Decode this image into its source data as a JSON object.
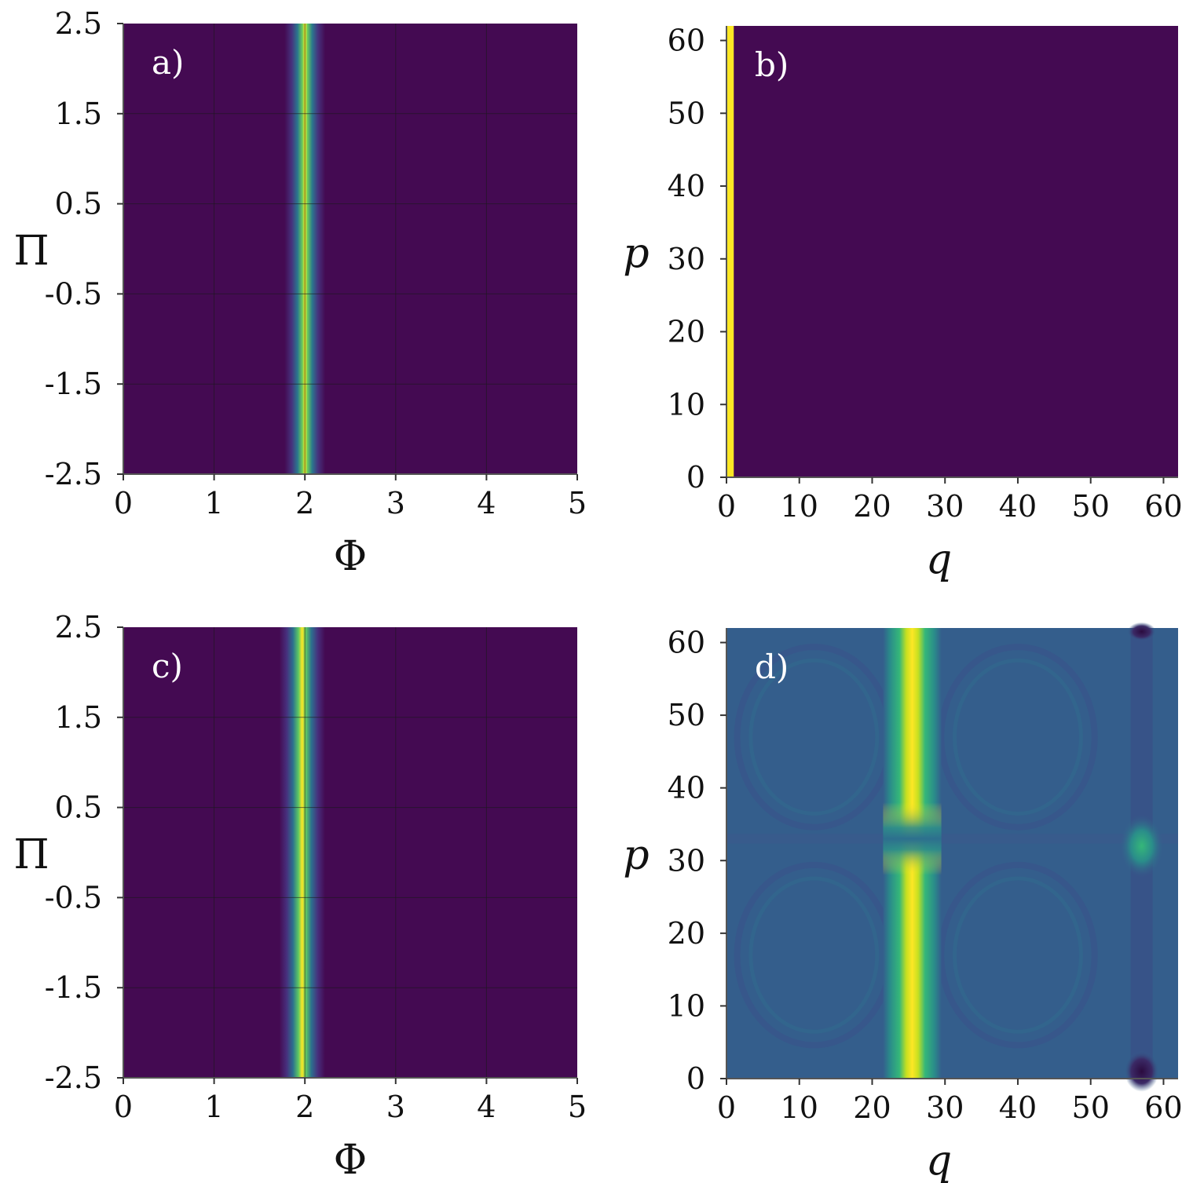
{
  "chart_data": [
    {
      "type": "heatmap",
      "panel_label": "a)",
      "xlabel": "Φ",
      "ylabel": "Π",
      "xlim": [
        0,
        5
      ],
      "ylim": [
        -2.5,
        2.5
      ],
      "xticks": [
        "0",
        "1",
        "2",
        "3",
        "4",
        "5"
      ],
      "yticks": [
        "2.5",
        "1.5",
        "0.5",
        "-0.5",
        "-1.5",
        "-2.5"
      ],
      "grid": true,
      "background_color": "#440a52",
      "feature": {
        "kind": "vertical_band",
        "center_x": 2.0,
        "width": 0.16,
        "peak_color": "#fde725"
      }
    },
    {
      "type": "heatmap",
      "panel_label": "b)",
      "xlabel": "q",
      "ylabel": "p",
      "xlim": [
        0,
        62
      ],
      "ylim": [
        0,
        62
      ],
      "xticks": [
        "0",
        "10",
        "20",
        "30",
        "40",
        "50",
        "60"
      ],
      "yticks": [
        "60",
        "50",
        "40",
        "30",
        "20",
        "10",
        "0"
      ],
      "grid": false,
      "background_color": "#440a52",
      "feature": {
        "kind": "column",
        "q_start": 0,
        "q_end": 1,
        "peak_color": "#fde725"
      }
    },
    {
      "type": "heatmap",
      "panel_label": "c)",
      "xlabel": "Φ",
      "ylabel": "Π",
      "xlim": [
        0,
        5
      ],
      "ylim": [
        -2.5,
        2.5
      ],
      "xticks": [
        "0",
        "1",
        "2",
        "3",
        "4",
        "5"
      ],
      "yticks": [
        "2.5",
        "1.5",
        "0.5",
        "-0.5",
        "-1.5",
        "-2.5"
      ],
      "grid": true,
      "background_color": "#440a52",
      "feature": {
        "kind": "vertical_band",
        "center_x": 1.97,
        "width": 0.18,
        "peak_color": "#fde725"
      }
    },
    {
      "type": "heatmap",
      "panel_label": "d)",
      "xlabel": "q",
      "ylabel": "p",
      "xlim": [
        0,
        62
      ],
      "ylim": [
        0,
        62
      ],
      "xticks": [
        "0",
        "10",
        "20",
        "30",
        "40",
        "50",
        "60"
      ],
      "yticks": [
        "60",
        "50",
        "40",
        "30",
        "20",
        "10",
        "0"
      ],
      "grid": false,
      "background_color": "#345e8c",
      "feature": {
        "kind": "column_with_features",
        "column_q": 25.5,
        "column_width": 2.5,
        "peak_color": "#fde725",
        "gap_p": 33,
        "spot_q": 57,
        "spot_p": 32,
        "dark_q": 57,
        "dark_p": 1
      }
    }
  ]
}
